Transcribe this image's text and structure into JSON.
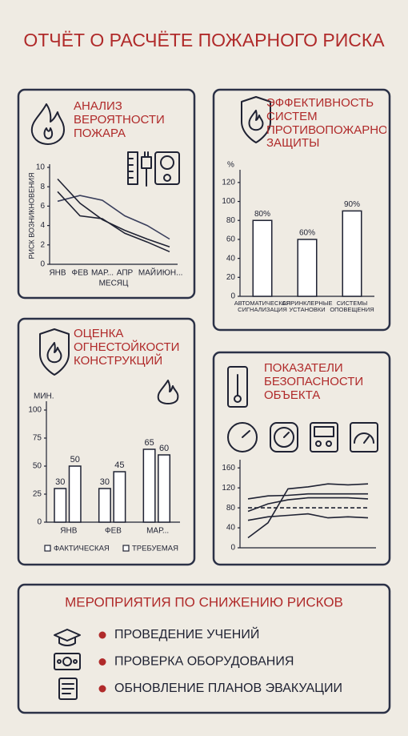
{
  "header": {
    "title": "ОТЧЁТ О РАСЧЁТЕ ПОЖАРНОГО РИСКА"
  },
  "chart_data": [
    {
      "type": "line",
      "title": "АНАЛИЗ ВЕРОЯТНОСТИ ПОЖАРА",
      "y_label": "РИСК ВОЗНИКНОВЕНИЯ",
      "x_label": "МЕСЯЦ",
      "categories": [
        "ЯНВ",
        "ФЕВ",
        "МАР...",
        "АПР",
        "МАЙ",
        "ИЮН..."
      ],
      "series": [
        {
          "color": "#3a3f5c",
          "values": [
            6.5,
            7.1,
            6.6,
            5.0,
            4.0,
            2.6
          ]
        },
        {
          "color": "#1f2233",
          "values": [
            8.8,
            6.3,
            4.6,
            3.5,
            2.6,
            1.8
          ]
        },
        {
          "color": "#1f2233",
          "values": [
            7.5,
            5.0,
            4.7,
            3.2,
            2.3,
            1.3
          ]
        }
      ],
      "ylim": [
        0,
        10
      ],
      "yticks": [
        0,
        2,
        4,
        6,
        8,
        10
      ]
    },
    {
      "type": "bar",
      "title": "ЭФФЕКТИВНОСТЬ СИСТЕМ ПРОТИВОПОЖАРНОЙ ЗАЩИТЫ",
      "y_unit": "%",
      "categories": [
        "АВТОМАТИЧЕСКАЯ СИГНАЛИЗАЦИЯ",
        "СПРИНКЛЕРНЫЕ УСТАНОВКИ",
        "СИСТЕМЫ ОПОВЕЩЕНИЯ"
      ],
      "values": [
        80,
        60,
        90
      ],
      "value_labels": [
        "80%",
        "60%",
        "90%"
      ],
      "color": "#ffffff",
      "ylim": [
        0,
        130
      ],
      "yticks": [
        0,
        20,
        40,
        60,
        80,
        100,
        120
      ]
    },
    {
      "type": "bar",
      "title": "ОЦЕНКА ОГНЕСТОЙКОСТИ КОНСТРУКЦИЙ",
      "y_unit": "МИН.",
      "categories": [
        "ЯНВ",
        "ФЕВ",
        "МАР..."
      ],
      "series": [
        {
          "name": "ФАКТИЧЕСКАЯ",
          "color": "#ffffff",
          "values": [
            30,
            30,
            65
          ]
        },
        {
          "name": "ТРЕБУЕМАЯ",
          "color": "#ffffff",
          "values": [
            50,
            45,
            60
          ]
        }
      ],
      "ylim": [
        0,
        105
      ],
      "yticks": [
        0,
        25,
        50,
        75,
        100
      ]
    },
    {
      "type": "line",
      "title": "ПОКАЗАТЕЛИ БЕЗОПАСНОСТИ ОБЪЕКТА",
      "series": [
        {
          "color": "#1f2233",
          "values": [
            20,
            50,
            118,
            122,
            128,
            126,
            128
          ]
        },
        {
          "color": "#1f2233",
          "values": [
            98,
            104,
            105,
            108,
            108,
            108,
            108
          ]
        },
        {
          "color": "#1f2233",
          "values": [
            73,
            88,
            96,
            100,
            100,
            100,
            98
          ]
        },
        {
          "color": "#1f2233",
          "values": [
            55,
            62,
            65,
            68,
            60,
            62,
            60
          ]
        },
        {
          "color": "#1f2233",
          "dashed": true,
          "values": [
            80,
            80,
            80,
            80,
            80,
            80,
            80
          ]
        }
      ],
      "ylim": [
        0,
        170
      ],
      "yticks": [
        0,
        40,
        80,
        120,
        160
      ]
    }
  ],
  "measures": {
    "title": "МЕРОПРИЯТИЯ ПО СНИЖЕНИЮ РИСКОВ",
    "items": [
      "ПРОВЕДЕНИЕ УЧЕНИЙ",
      "ПРОВЕРКА  ОБОРУДОВАНИЯ",
      "ОБНОВЛЕНИЕ ПЛАНОВ ЭВАКУАЦИИ"
    ]
  }
}
